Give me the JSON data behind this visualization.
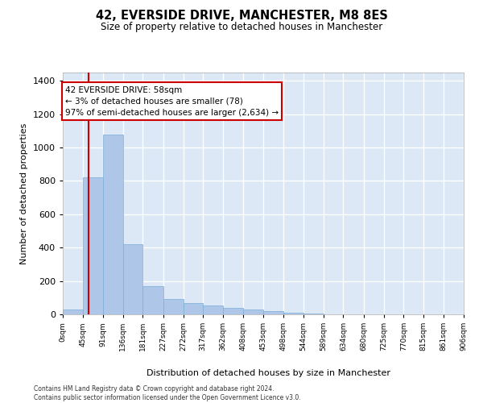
{
  "title1": "42, EVERSIDE DRIVE, MANCHESTER, M8 8ES",
  "title2": "Size of property relative to detached houses in Manchester",
  "xlabel": "Distribution of detached houses by size in Manchester",
  "ylabel": "Number of detached properties",
  "annotation_line1": "42 EVERSIDE DRIVE: 58sqm",
  "annotation_line2": "← 3% of detached houses are smaller (78)",
  "annotation_line3": "97% of semi-detached houses are larger (2,634) →",
  "property_size_sqm": 58,
  "bin_edges": [
    0,
    45,
    91,
    136,
    181,
    227,
    272,
    317,
    362,
    408,
    453,
    498,
    544,
    589,
    634,
    680,
    725,
    770,
    815,
    861,
    906
  ],
  "bar_heights": [
    30,
    820,
    1080,
    420,
    170,
    90,
    70,
    55,
    40,
    30,
    20,
    10,
    5,
    2,
    1,
    1,
    0,
    0,
    0,
    0
  ],
  "bar_color": "#aec6e8",
  "bar_edge_color": "#7aaed6",
  "annotation_box_color": "#ffffff",
  "annotation_box_edge_color": "#cc0000",
  "property_line_color": "#cc0000",
  "background_color": "#dce8f5",
  "grid_color": "#ffffff",
  "ylim": [
    0,
    1450
  ],
  "yticks": [
    0,
    200,
    400,
    600,
    800,
    1000,
    1200,
    1400
  ],
  "footer_line1": "Contains HM Land Registry data © Crown copyright and database right 2024.",
  "footer_line2": "Contains public sector information licensed under the Open Government Licence v3.0."
}
